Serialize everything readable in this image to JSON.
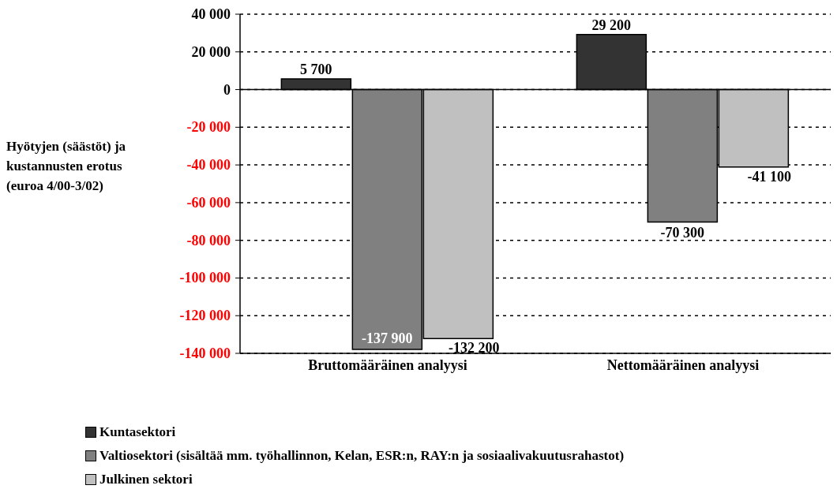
{
  "chart_data": {
    "type": "bar",
    "ylabel": "Hyötyjen (säästöt) ja kustannusten erotus (euroa 4/00-3/02)",
    "categories": [
      "Bruttomääräinen analyysi",
      "Nettomääräinen analyysi"
    ],
    "series": [
      {
        "name": "Kuntasektori",
        "color": "#333333",
        "values": [
          5700,
          29200
        ],
        "value_labels": [
          "5 700",
          "29 200"
        ]
      },
      {
        "name": "Valtiosektori (sisältää mm. työhallinnon, Kelan, ESR:n, RAY:n ja sosiaalivakuutusrahastot)",
        "color": "#808080",
        "values": [
          -137900,
          -70300
        ],
        "value_labels": [
          "-137 900",
          "-70 300"
        ]
      },
      {
        "name": "Julkinen sektori",
        "color": "#c0c0c0",
        "values": [
          -132200,
          -41100
        ],
        "value_labels": [
          "-132 200",
          "-41 100"
        ]
      }
    ],
    "ylim": [
      -140000,
      40000
    ],
    "yticks": [
      {
        "value": -140000,
        "label": "-140 000"
      },
      {
        "value": -120000,
        "label": "-120 000"
      },
      {
        "value": -100000,
        "label": "-100 000"
      },
      {
        "value": -80000,
        "label": "-80 000"
      },
      {
        "value": -60000,
        "label": "-60 000"
      },
      {
        "value": -40000,
        "label": "-40 000"
      },
      {
        "value": -20000,
        "label": "-20 000"
      },
      {
        "value": 0,
        "label": "0"
      },
      {
        "value": 20000,
        "label": "20 000"
      },
      {
        "value": 40000,
        "label": "40 000"
      }
    ],
    "grid": "y",
    "legend": "bottom"
  }
}
